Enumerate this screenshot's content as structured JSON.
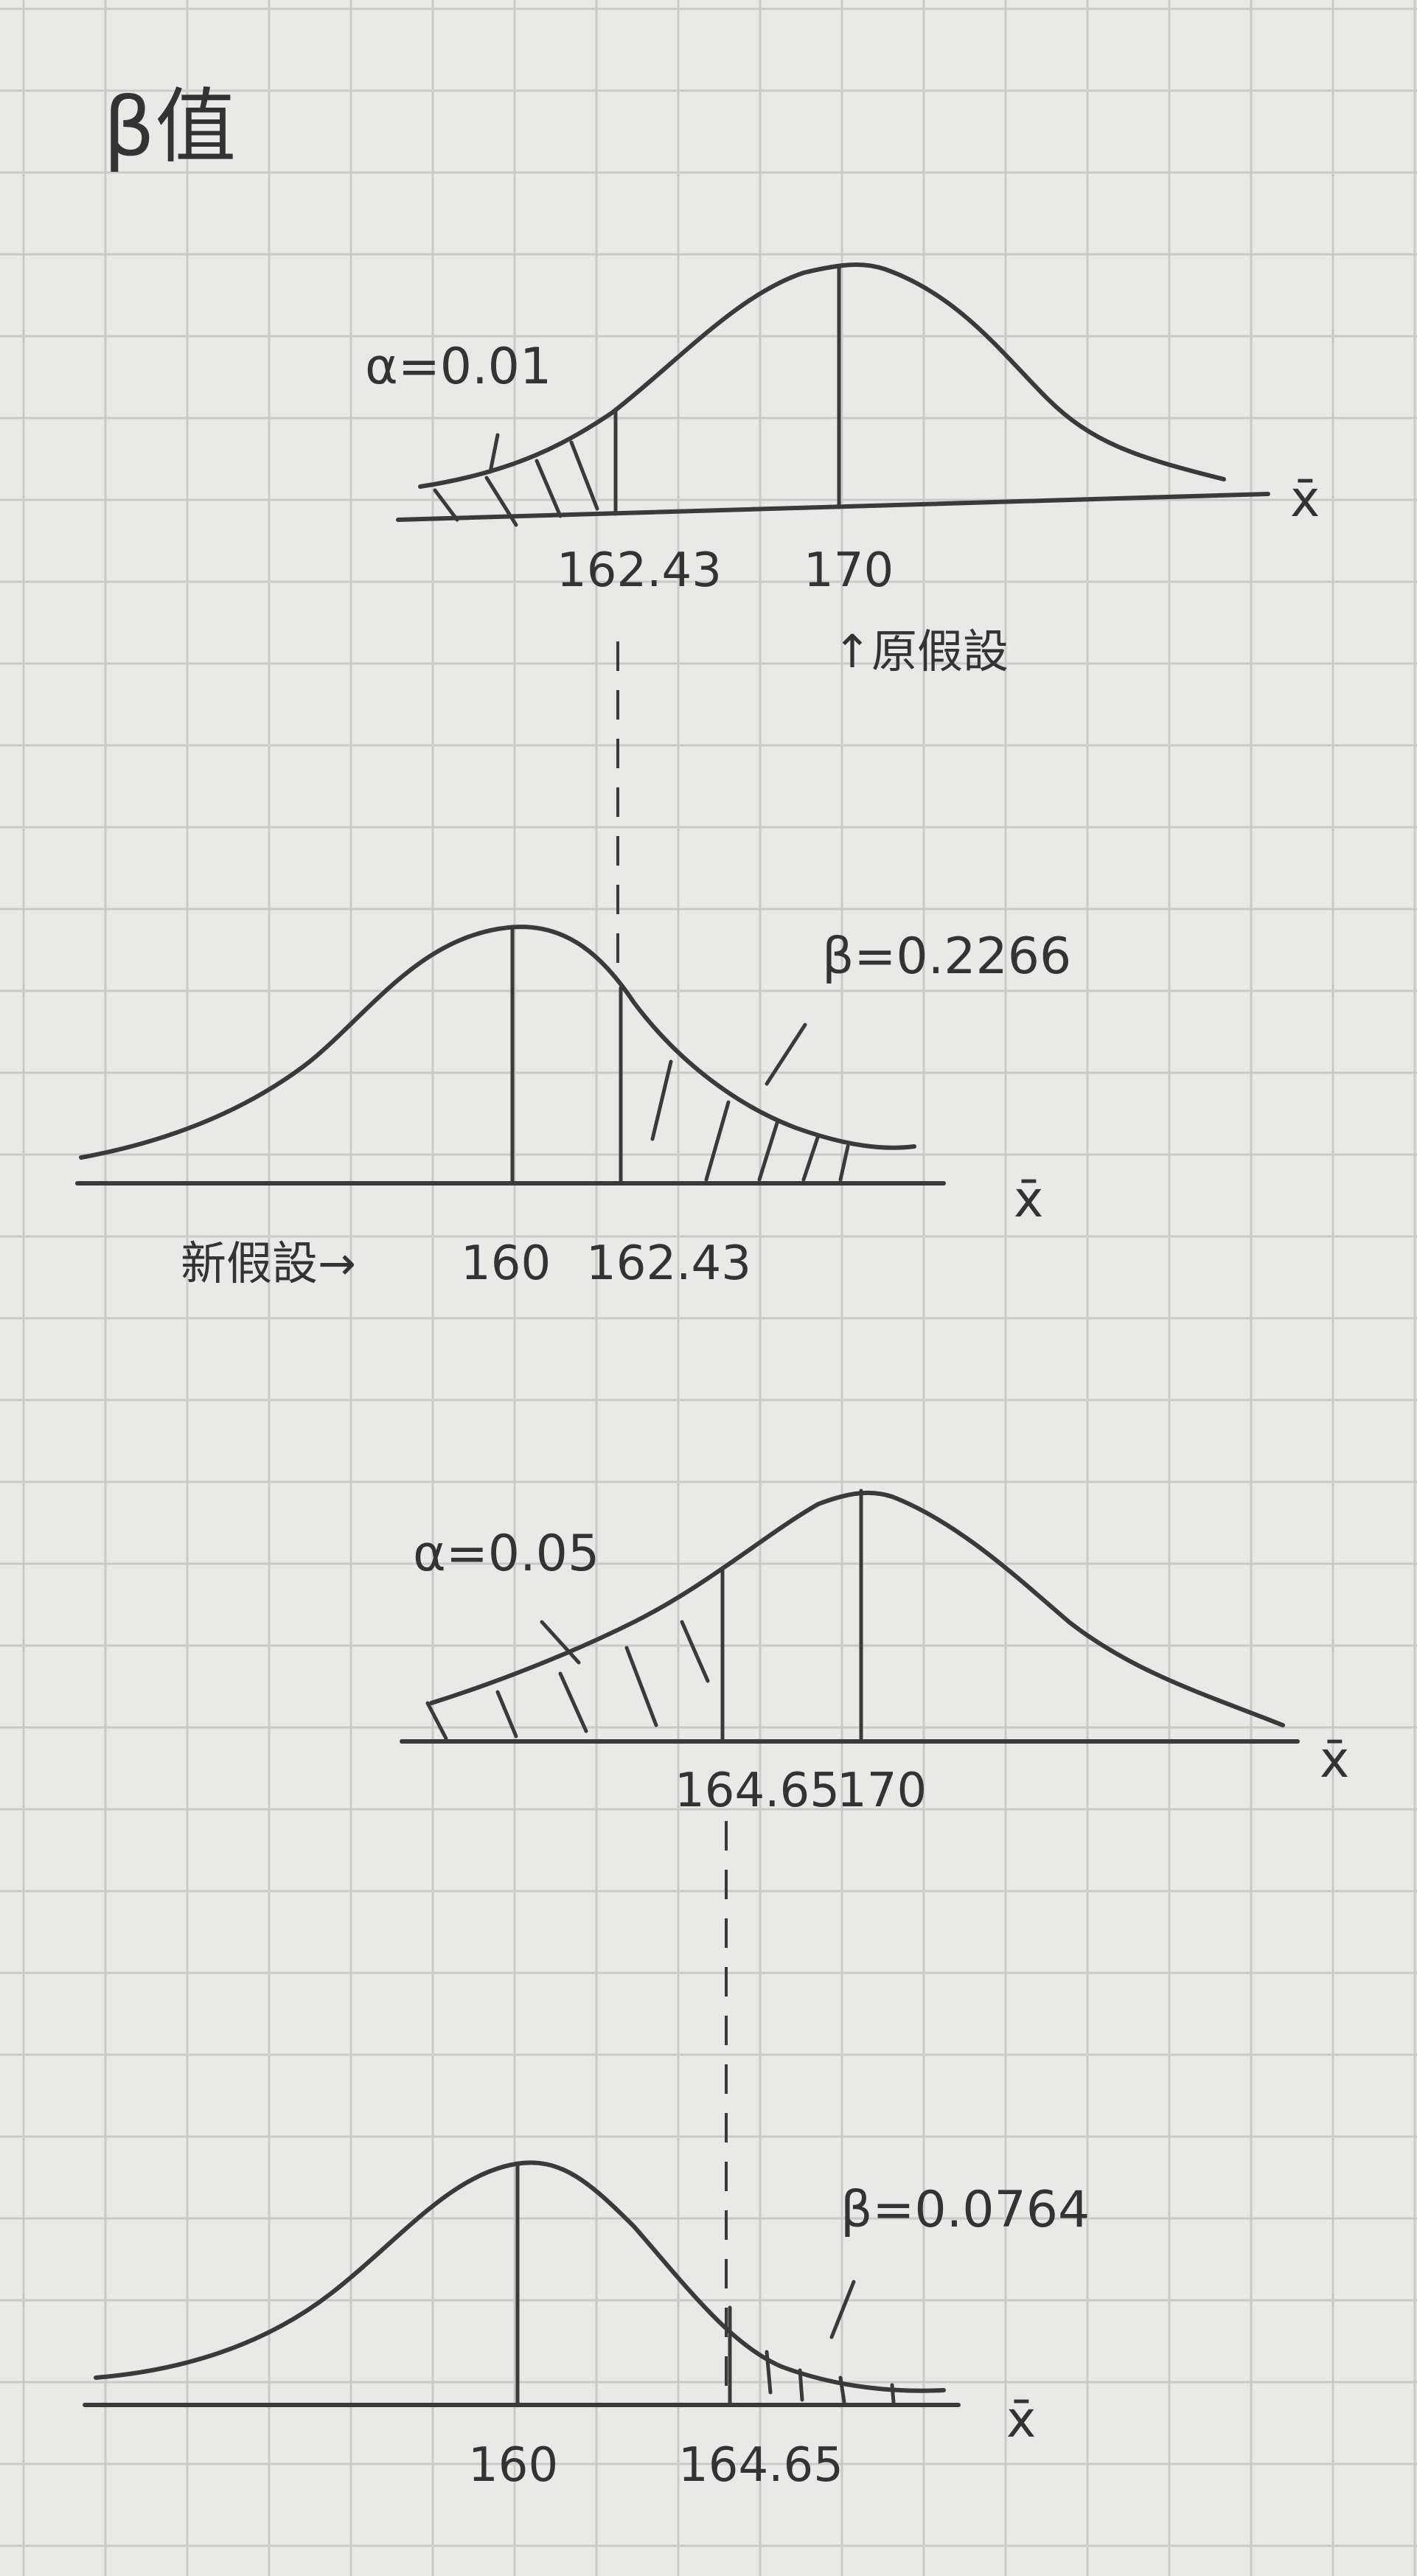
{
  "title": "β值",
  "xbar_label": "x̄",
  "panels": [
    {
      "id": "alpha-0.01-original",
      "hypothesis_mean": "170",
      "critical_value": "162.43",
      "region_label": "α=0.01",
      "note": "↑原假設"
    },
    {
      "id": "beta-0.2266-new",
      "hypothesis_mean": "160",
      "critical_value": "162.43",
      "region_label": "β=0.2266",
      "note": "新假設→"
    },
    {
      "id": "alpha-0.05-original",
      "hypothesis_mean": "170",
      "critical_value": "164.65",
      "region_label": "α=0.05"
    },
    {
      "id": "beta-0.0764-new",
      "hypothesis_mean": "160",
      "critical_value": "164.65",
      "region_label": "β=0.0764"
    }
  ]
}
